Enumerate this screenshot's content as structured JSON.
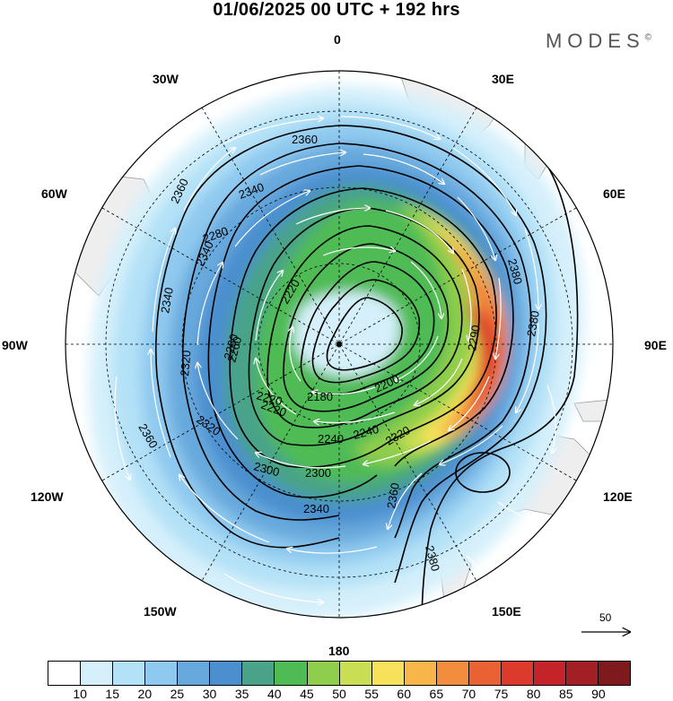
{
  "title": "01/06/2025  00 UTC  + 192 hrs",
  "brand": "MODES",
  "brand_mark": "©",
  "map": {
    "projection": "south-polar-stereographic",
    "longitude_labels": [
      "0",
      "30E",
      "60E",
      "90E",
      "120E",
      "150E",
      "180",
      "150W",
      "120W",
      "90W",
      "60W",
      "30W"
    ],
    "contour_labels": [
      "2360",
      "2360",
      "2340",
      "2340",
      "2340",
      "2280",
      "2260",
      "2220",
      "2220",
      "2260",
      "2240",
      "2320",
      "2180",
      "2200",
      "2220",
      "2240",
      "2300",
      "2300",
      "2320",
      "2320",
      "2380",
      "2380",
      "2340",
      "2360",
      "2380",
      "2360",
      "2380",
      "2290"
    ],
    "vector_scale": {
      "label": "50",
      "units": "reference wind vector"
    },
    "colors": {
      "land": "#eeeeee",
      "coast": "#999999",
      "contour": "#000000",
      "grid": "#000000"
    }
  },
  "colorbar": {
    "levels": [
      "10",
      "15",
      "20",
      "25",
      "30",
      "35",
      "40",
      "45",
      "50",
      "55",
      "60",
      "65",
      "70",
      "75",
      "80",
      "85",
      "90"
    ],
    "colors": [
      "#ffffff",
      "#d5f0fb",
      "#b3e1f7",
      "#8fc9ef",
      "#68a9dd",
      "#4b8fcf",
      "#4aa389",
      "#4fbb55",
      "#8fce4c",
      "#c9de52",
      "#f8e15a",
      "#f8b54a",
      "#f38d3e",
      "#ea6233",
      "#dc3a2c",
      "#c4232a",
      "#a31f26",
      "#7e1a1d"
    ]
  }
}
